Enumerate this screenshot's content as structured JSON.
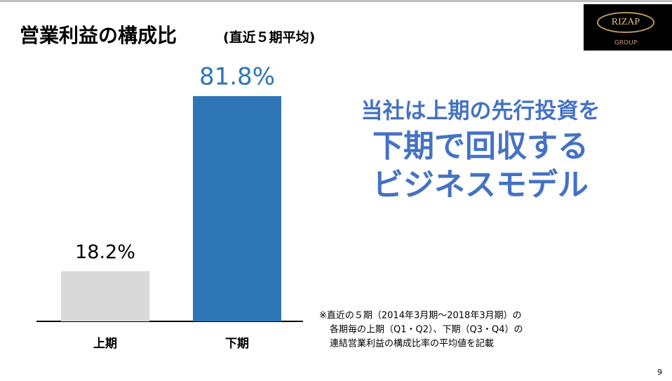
{
  "chart_data": {
    "type": "bar",
    "title": "営業利益の構成比",
    "subtitle": "(直近５期平均)",
    "categories": [
      "上期",
      "下期"
    ],
    "values": [
      18.2,
      81.8
    ],
    "value_labels": [
      "18.2%",
      "81.8%"
    ],
    "colors": [
      "#d9d9d9",
      "#2e75b6"
    ],
    "label_colors": [
      "#000000",
      "#2e75b6"
    ]
  },
  "message": [
    "当社は上期の先行投資を",
    "下期で回収する",
    "ビジネスモデル"
  ],
  "note": [
    "※直近の５期（2014年3月期〜2018年3月期）の",
    "各期毎の上期（Q1・Q2）、下期（Q3・Q4）の",
    "連結営業利益の構成比率の平均値を記載"
  ],
  "logo": {
    "name": "RIZAP",
    "sub": "GROUP"
  },
  "page_number": "9"
}
